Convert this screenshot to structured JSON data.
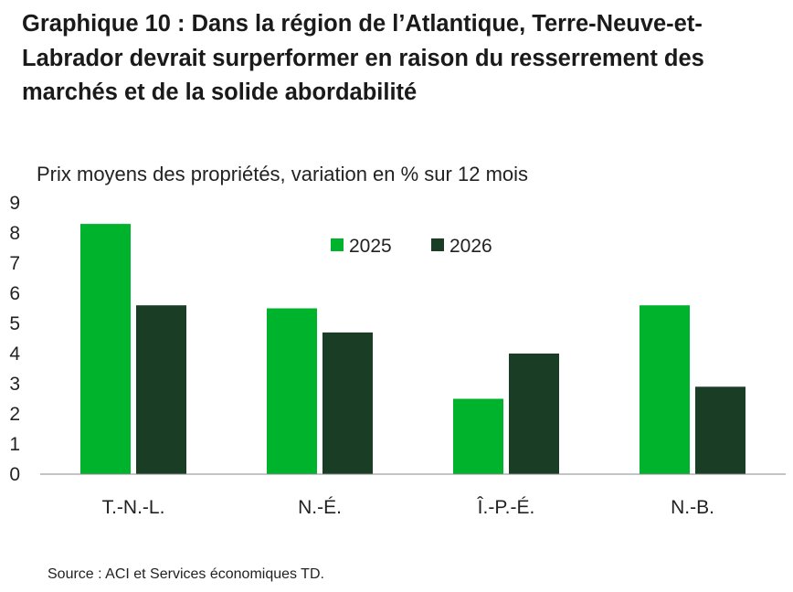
{
  "title": "Graphique 10 : Dans la région de l’Atlantique, Terre-Neuve-et-Labrador devrait surperformer en raison du resserrement des marchés et de la solide abordabilité",
  "source": "Source : ACI et Services économiques TD.",
  "chart_data": {
    "type": "bar",
    "subtitle": "Prix moyens des propriétés, variation en % sur 12 mois",
    "categories": [
      "T.-N.-L.",
      "N.-É.",
      "Î.-P.-É.",
      "N.-B."
    ],
    "series": [
      {
        "name": "2025",
        "values": [
          8.3,
          5.5,
          2.5,
          5.6
        ],
        "color": "#00b32c"
      },
      {
        "name": "2026",
        "values": [
          5.6,
          4.7,
          4.0,
          2.9
        ],
        "color": "#1a3d25"
      }
    ],
    "ylim": [
      0,
      9
    ],
    "yticks": [
      0,
      1,
      2,
      3,
      4,
      5,
      6,
      7,
      8,
      9
    ],
    "grid": false,
    "legend": "top-center"
  }
}
